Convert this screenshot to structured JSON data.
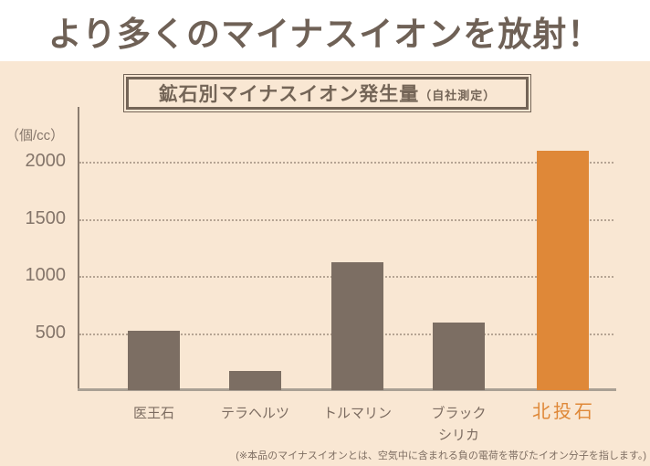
{
  "page": {
    "title": "より多くのマイナスイオンを放射！",
    "footnote": "(※本品のマイナスイオンとは、空気中に含まれる負の電荷を帯びたイオン分子を指します。)"
  },
  "chart_data": {
    "type": "bar",
    "title": "鉱石別マイナスイオン発生量",
    "title_suffix": "（自社測定）",
    "unit_label": "（個/cc）",
    "categories": [
      "医王石",
      "テラヘルツ",
      "トルマリン",
      "ブラック\nシリカ",
      "北投石"
    ],
    "values": [
      520,
      170,
      1120,
      590,
      2100
    ],
    "highlight_index": 4,
    "yticks": [
      500,
      1000,
      1500,
      2000
    ],
    "ylim": [
      0,
      2480
    ],
    "grid": "horizontal-dotted",
    "legend": "none",
    "colors": {
      "background": "#f9e7d3",
      "bar": "#7c6e63",
      "highlight": "#df8838",
      "grid_dots": "#b5a493",
      "y_axis": "#8b7c6f",
      "x_axis": "#aaa094",
      "tick_text": "#84756a",
      "label_text": "#7c6c61",
      "title_text": "#6f6156",
      "box_ink": "#746557",
      "note_text": "#7e6e62"
    }
  }
}
